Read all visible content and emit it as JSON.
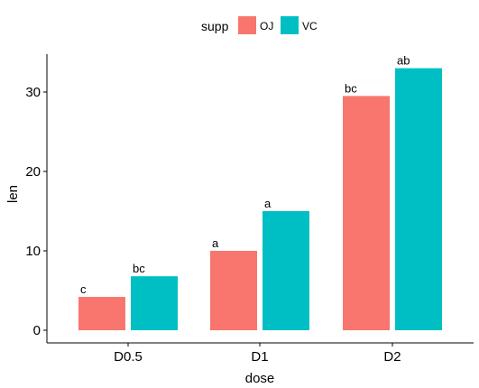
{
  "chart_data": {
    "type": "bar",
    "xlabel": "dose",
    "ylabel": "len",
    "categories": [
      "D0.5",
      "D1",
      "D2"
    ],
    "ylim": [
      0,
      35
    ],
    "yticks": [
      0,
      10,
      20,
      30
    ],
    "grid": false,
    "legend": {
      "title": "supp",
      "position": "top",
      "entries": [
        "OJ",
        "VC"
      ]
    },
    "series": [
      {
        "name": "OJ",
        "color": "#F8766D",
        "values": [
          4.2,
          10.0,
          29.5
        ],
        "labels": [
          "c",
          "a",
          "bc"
        ]
      },
      {
        "name": "VC",
        "color": "#00BFC4",
        "values": [
          6.8,
          15.0,
          33.0
        ],
        "labels": [
          "bc",
          "a",
          "ab"
        ]
      }
    ]
  }
}
